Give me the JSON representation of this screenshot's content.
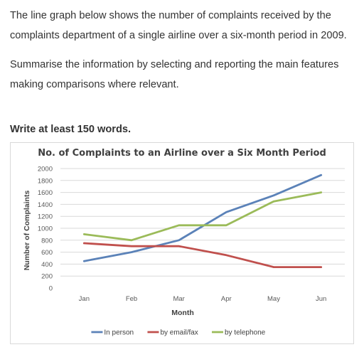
{
  "task": {
    "paragraph1": "The line graph below shows the number of complaints received by the complaints department of a single airline over a six-month period in 2009.",
    "paragraph2": "Summarise the information by selecting and reporting the main features making comparisons where relevant.",
    "instruction": "Write at least 150 words."
  },
  "chart_data": {
    "type": "line",
    "title": "No. of Complaints to an Airline over a Six Month Period",
    "xlabel": "Month",
    "ylabel": "Number of Complaints",
    "categories": [
      "Jan",
      "Feb",
      "Mar",
      "Apr",
      "May",
      "Jun"
    ],
    "ylim": [
      0,
      2000
    ],
    "yticks": [
      "0",
      "200",
      "400",
      "600",
      "800",
      "1000",
      "1200",
      "1400",
      "1600",
      "1800",
      "2000"
    ],
    "grid": true,
    "legend_position": "bottom",
    "series": [
      {
        "name": "In person",
        "color": "#5b82b8",
        "values": [
          450,
          600,
          800,
          1270,
          1550,
          1890
        ]
      },
      {
        "name": "by email/fax",
        "color": "#c0504d",
        "values": [
          750,
          700,
          700,
          550,
          350,
          350
        ]
      },
      {
        "name": "by telephone",
        "color": "#9bbb59",
        "values": [
          900,
          800,
          1050,
          1050,
          1450,
          1600
        ]
      }
    ]
  }
}
